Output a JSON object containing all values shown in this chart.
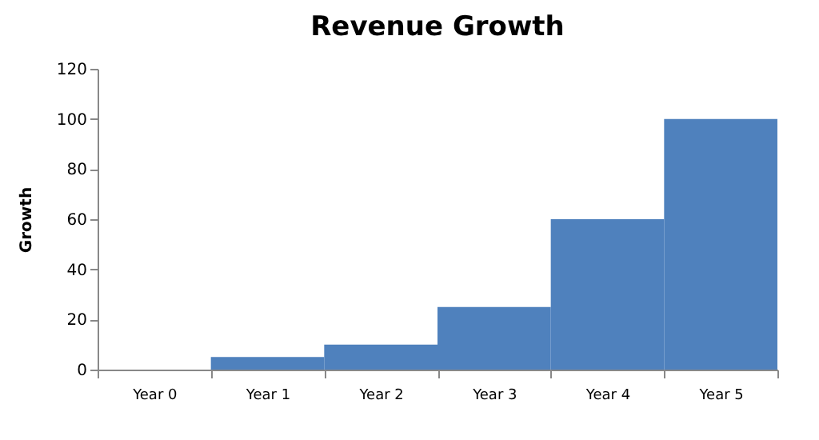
{
  "chart_data": {
    "type": "bar",
    "title": "Revenue Growth",
    "ylabel": "Growth",
    "categories": [
      "Year 0",
      "Year 1",
      "Year 2",
      "Year 3",
      "Year 4",
      "Year 5"
    ],
    "values": [
      0,
      5,
      10,
      25,
      60,
      100
    ],
    "color": "#4f81bd",
    "ylim": [
      0,
      120
    ],
    "yticks": [
      0,
      20,
      40,
      60,
      80,
      100,
      120
    ],
    "grid": false
  }
}
